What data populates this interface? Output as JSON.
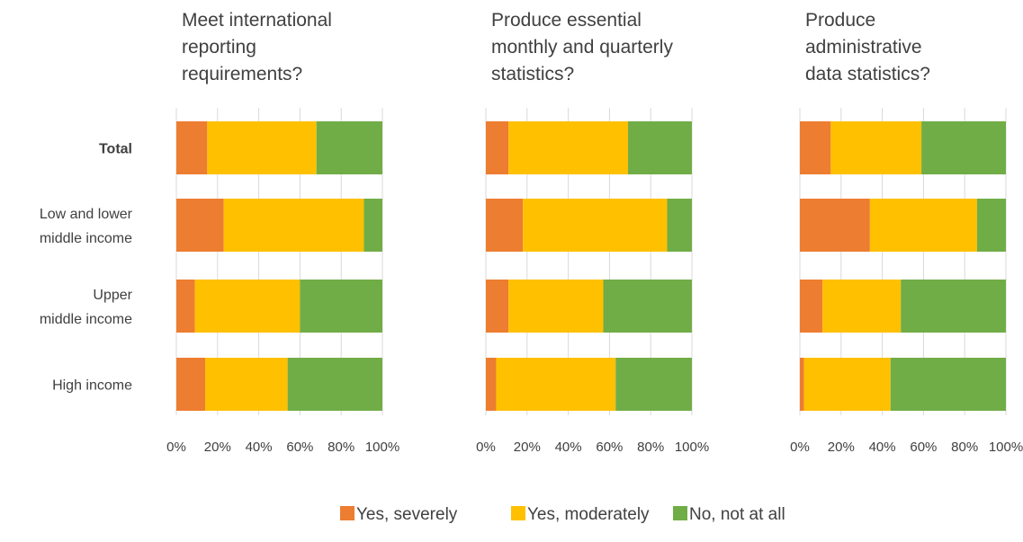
{
  "chart_data": {
    "type": "bar",
    "orientation": "horizontal",
    "stacked": true,
    "categories": [
      "Total",
      "Low and lower middle income",
      "Upper middle income",
      "High income"
    ],
    "category_lines": [
      [
        "Total"
      ],
      [
        "Low and lower",
        "middle income"
      ],
      [
        "Upper",
        "middle income"
      ],
      [
        "High income"
      ]
    ],
    "bold_categories": [
      "Total"
    ],
    "xlim": [
      0,
      100
    ],
    "x_ticks": [
      "0%",
      "20%",
      "40%",
      "60%",
      "80%",
      "100%"
    ],
    "grid": true,
    "legend": {
      "placement": "bottom",
      "entries": [
        "Yes, severely",
        "Yes, moderately",
        "No, not at all"
      ]
    },
    "colors": {
      "Yes, severely": "#ed7d31",
      "Yes, moderately": "#ffc000",
      "No, not at all": "#70ad47"
    },
    "panels": [
      {
        "title_lines": [
          "Meet international",
          "reporting",
          "requirements?"
        ],
        "series": [
          {
            "name": "Yes, severely",
            "values": [
              15,
              23,
              9,
              14
            ]
          },
          {
            "name": "Yes, moderately",
            "values": [
              53,
              68,
              51,
              40
            ]
          },
          {
            "name": "No, not at all",
            "values": [
              32,
              9,
              40,
              46
            ]
          }
        ]
      },
      {
        "title_lines": [
          "Produce essential",
          "monthly and quarterly",
          "statistics?"
        ],
        "series": [
          {
            "name": "Yes, severely",
            "values": [
              11,
              18,
              11,
              5
            ]
          },
          {
            "name": "Yes, moderately",
            "values": [
              58,
              70,
              46,
              58
            ]
          },
          {
            "name": "No, not at all",
            "values": [
              31,
              12,
              43,
              37
            ]
          }
        ]
      },
      {
        "title_lines": [
          "Produce",
          "administrative",
          "data statistics?"
        ],
        "series": [
          {
            "name": "Yes, severely",
            "values": [
              15,
              34,
              11,
              2
            ]
          },
          {
            "name": "Yes, moderately",
            "values": [
              44,
              52,
              38,
              42
            ]
          },
          {
            "name": "No, not at all",
            "values": [
              41,
              14,
              51,
              56
            ]
          }
        ]
      }
    ]
  }
}
